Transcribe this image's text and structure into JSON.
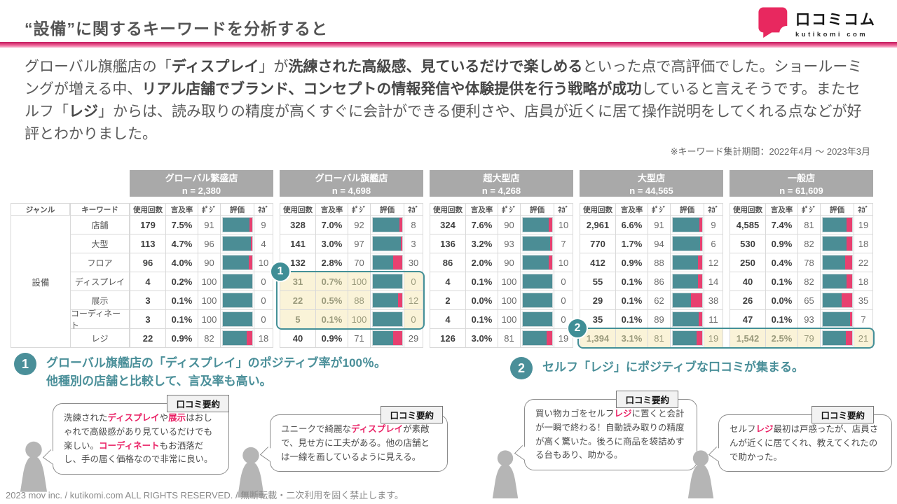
{
  "header": {
    "title": "“設備”に関するキーワードを分析すると",
    "logo": {
      "brand": "口コミコム",
      "sub": "kutikomi com",
      "brand_color": "#e8285f"
    }
  },
  "intro": {
    "segments": [
      {
        "t": "グローバル旗艦店の「"
      },
      {
        "t": "ディスプレイ",
        "c": "b"
      },
      {
        "t": "」が"
      },
      {
        "t": "洗練された高級感、見ているだけで楽しめる",
        "c": "b"
      },
      {
        "t": "といった点で高評価でした。ショールーミングが増える中、"
      },
      {
        "t": "リアル店舗でブランド、コンセプトの情報発信や体験提供を行う戦略が成功",
        "c": "b"
      },
      {
        "t": "していると言えそうです。またセルフ「"
      },
      {
        "t": "レジ",
        "c": "b"
      },
      {
        "t": "」からは、読み取りの精度が高くすぐに会計ができる便利さや、店員が近くに居て操作説明をしてくれる点などが好評とわかりました。"
      }
    ]
  },
  "note": "※キーワード集計期間：2022年4月 ～ 2023年3月",
  "table": {
    "genre_header": "ジャンル",
    "keyword_header": "キーワード",
    "genre": "設備",
    "metric_headers": [
      "使用回数",
      "言及率",
      "ﾎﾟｼﾞ",
      "評価",
      "ﾈｶﾞ"
    ],
    "keywords": [
      "店舗",
      "大型",
      "フロア",
      "ディスプレイ",
      "展示",
      "コーディネート",
      "レジ"
    ],
    "groups": [
      {
        "name": "グローバル繁盛店",
        "n": "n = 2,380",
        "rows": [
          {
            "count": "179",
            "rate": "7.5%",
            "pos": 91,
            "neg": 9
          },
          {
            "count": "113",
            "rate": "4.7%",
            "pos": 96,
            "neg": 4
          },
          {
            "count": "96",
            "rate": "4.0%",
            "pos": 90,
            "neg": 10
          },
          {
            "count": "4",
            "rate": "0.2%",
            "pos": 100,
            "neg": 0
          },
          {
            "count": "3",
            "rate": "0.1%",
            "pos": 100,
            "neg": 0
          },
          {
            "count": "3",
            "rate": "0.1%",
            "pos": 100,
            "neg": 0
          },
          {
            "count": "22",
            "rate": "0.9%",
            "pos": 82,
            "neg": 18
          }
        ]
      },
      {
        "name": "グローバル旗艦店",
        "n": "n = 4,698",
        "rows": [
          {
            "count": "328",
            "rate": "7.0%",
            "pos": 92,
            "neg": 8
          },
          {
            "count": "141",
            "rate": "3.0%",
            "pos": 97,
            "neg": 3
          },
          {
            "count": "132",
            "rate": "2.8%",
            "pos": 70,
            "neg": 30
          },
          {
            "count": "31",
            "rate": "0.7%",
            "pos": 100,
            "neg": 0
          },
          {
            "count": "22",
            "rate": "0.5%",
            "pos": 88,
            "neg": 12
          },
          {
            "count": "5",
            "rate": "0.1%",
            "pos": 100,
            "neg": 0
          },
          {
            "count": "40",
            "rate": "0.9%",
            "pos": 71,
            "neg": 29
          }
        ]
      },
      {
        "name": "超大型店",
        "n": "n = 4,268",
        "rows": [
          {
            "count": "324",
            "rate": "7.6%",
            "pos": 90,
            "neg": 10
          },
          {
            "count": "136",
            "rate": "3.2%",
            "pos": 93,
            "neg": 7
          },
          {
            "count": "86",
            "rate": "2.0%",
            "pos": 90,
            "neg": 10
          },
          {
            "count": "4",
            "rate": "0.1%",
            "pos": 100,
            "neg": 0
          },
          {
            "count": "2",
            "rate": "0.0%",
            "pos": 100,
            "neg": 0
          },
          {
            "count": "4",
            "rate": "0.1%",
            "pos": 100,
            "neg": 0
          },
          {
            "count": "126",
            "rate": "3.0%",
            "pos": 81,
            "neg": 19
          }
        ]
      },
      {
        "name": "大型店",
        "n": "n = 44,565",
        "rows": [
          {
            "count": "2,961",
            "rate": "6.6%",
            "pos": 91,
            "neg": 9
          },
          {
            "count": "770",
            "rate": "1.7%",
            "pos": 94,
            "neg": 6
          },
          {
            "count": "412",
            "rate": "0.9%",
            "pos": 88,
            "neg": 12
          },
          {
            "count": "55",
            "rate": "0.1%",
            "pos": 86,
            "neg": 14
          },
          {
            "count": "29",
            "rate": "0.1%",
            "pos": 62,
            "neg": 38
          },
          {
            "count": "35",
            "rate": "0.1%",
            "pos": 89,
            "neg": 11
          },
          {
            "count": "1,394",
            "rate": "3.1%",
            "pos": 81,
            "neg": 19
          }
        ]
      },
      {
        "name": "一般店",
        "n": "n = 61,609",
        "rows": [
          {
            "count": "4,585",
            "rate": "7.4%",
            "pos": 81,
            "neg": 19
          },
          {
            "count": "530",
            "rate": "0.9%",
            "pos": 82,
            "neg": 18
          },
          {
            "count": "250",
            "rate": "0.4%",
            "pos": 78,
            "neg": 22
          },
          {
            "count": "40",
            "rate": "0.1%",
            "pos": 82,
            "neg": 18
          },
          {
            "count": "26",
            "rate": "0.0%",
            "pos": 65,
            "neg": 35
          },
          {
            "count": "47",
            "rate": "0.1%",
            "pos": 93,
            "neg": 7
          },
          {
            "count": "1,542",
            "rate": "2.5%",
            "pos": 79,
            "neg": 21
          }
        ]
      }
    ],
    "highlights": [
      {
        "group": 1,
        "rows": [
          3,
          4,
          5
        ]
      },
      {
        "group": 3,
        "rows": [
          6
        ]
      },
      {
        "group": 4,
        "rows": [
          6
        ]
      }
    ],
    "badges": [
      {
        "label": "1"
      },
      {
        "label": "2"
      }
    ],
    "colors": {
      "positive": "#4b8d95",
      "negative": "#e84070",
      "highlight_bg": "#faf3d8",
      "header_bg": "#a9a9a9"
    }
  },
  "annotations": [
    {
      "badge": "1",
      "lines": [
        "グローバル旗艦店の「ディスプレイ」のポジティブ率が100％。",
        "他種別の店舗と比較して、言及率も高い。"
      ]
    },
    {
      "badge": "2",
      "lines": [
        "セルフ「レジ」にポジティブな口コミが集まる。"
      ]
    }
  ],
  "bubbles": {
    "label": "口コミ要約",
    "items": [
      {
        "segments": [
          {
            "t": "洗練された"
          },
          {
            "t": "ディスプレイ",
            "c": "kw"
          },
          {
            "t": "や"
          },
          {
            "t": "展示",
            "c": "kw"
          },
          {
            "t": "はおしゃれで高級感があり見ているだけでも楽しい。"
          },
          {
            "t": "コーディネート",
            "c": "kw"
          },
          {
            "t": "もお洒落だし、手の届く価格なので非常に良い。"
          }
        ]
      },
      {
        "segments": [
          {
            "t": "ユニークで綺麗な"
          },
          {
            "t": "ディスプレイ",
            "c": "kw"
          },
          {
            "t": "が素敵で、見せ方に工夫がある。他の店舗とは一線を画しているように見える。"
          }
        ]
      },
      {
        "segments": [
          {
            "t": "買い物カゴをセルフ"
          },
          {
            "t": "レジ",
            "c": "kw"
          },
          {
            "t": "に置くと会計が一瞬で終わる！自動読み取りの精度が高く驚いた。後ろに商品を袋詰めする台もあり、助かる。"
          }
        ]
      },
      {
        "segments": [
          {
            "t": "セルフ"
          },
          {
            "t": "レジ",
            "c": "kw"
          },
          {
            "t": "最初は戸惑ったが、店員さんが近くに居てくれ、教えてくれたので助かった。"
          }
        ]
      }
    ]
  },
  "footer": "2023 mov inc. / kutikomi.com ALL RIGHTS RESERVED. / 無断転載・二次利用を固く禁止します。"
}
